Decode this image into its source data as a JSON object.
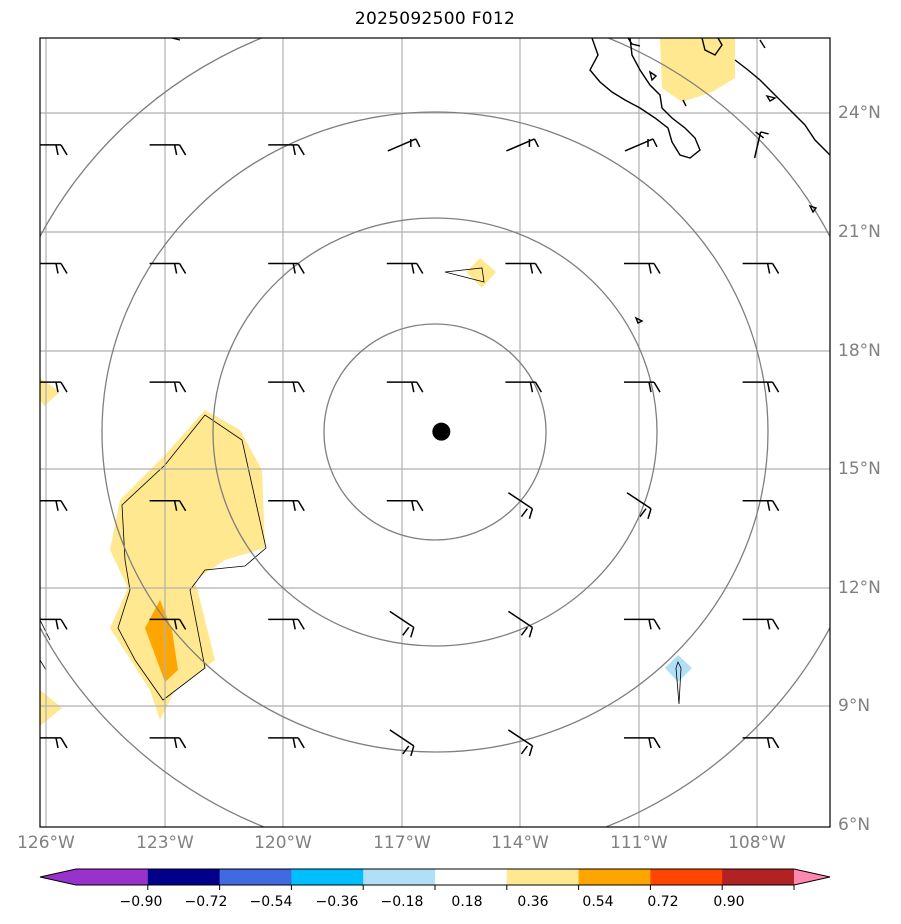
{
  "title": "2025092500 F012",
  "lat_labels": [
    "24°N",
    "21°N",
    "18°N",
    "15°N",
    "12°N",
    "9°N",
    "6°N"
  ],
  "lon_labels": [
    "126°W",
    "123°W",
    "120°W",
    "117°W",
    "114°W",
    "111°W",
    "108°W"
  ],
  "colorbar": {
    "labels": [
      "−0.90",
      "−0.72",
      "−0.54",
      "−0.36",
      "−0.18",
      "0.18",
      "0.36",
      "0.54",
      "0.72",
      "0.90"
    ],
    "colors": [
      "#9932cc",
      "#00008b",
      "#4169e1",
      "#00bfff",
      "#b0e0f8",
      "#ffffff",
      "#ffe88f",
      "#ffa500",
      "#ff4500",
      "#b22222",
      "#ff88b0"
    ]
  },
  "extent": {
    "lon": [
      -126.0,
      -106.0
    ],
    "lat": [
      6.0,
      26.0
    ]
  },
  "center_marker": {
    "lon": -116.0,
    "lat": 16.0,
    "color": "#000000"
  },
  "range_rings_deg": [
    2.75,
    5.5,
    8.25,
    11.0
  ],
  "wind_barbs": [
    {
      "lon": -126,
      "lat": 23,
      "dir": "w"
    },
    {
      "lon": -123,
      "lat": 23,
      "dir": "w"
    },
    {
      "lon": -120,
      "lat": 23,
      "dir": "w"
    },
    {
      "lon": -117,
      "lat": 23,
      "dir": "sw"
    },
    {
      "lon": -114,
      "lat": 23,
      "dir": "sw"
    },
    {
      "lon": -111,
      "lat": 23,
      "dir": "sw"
    },
    {
      "lon": -108,
      "lat": 23,
      "dir": "s"
    },
    {
      "lon": -126,
      "lat": 20,
      "dir": "w"
    },
    {
      "lon": -123,
      "lat": 20,
      "dir": "w"
    },
    {
      "lon": -120,
      "lat": 20,
      "dir": "w"
    },
    {
      "lon": -117,
      "lat": 20,
      "dir": "w"
    },
    {
      "lon": -114,
      "lat": 20,
      "dir": "w"
    },
    {
      "lon": -111,
      "lat": 20,
      "dir": "w"
    },
    {
      "lon": -108,
      "lat": 20,
      "dir": "w"
    },
    {
      "lon": -126,
      "lat": 17,
      "dir": "w"
    },
    {
      "lon": -123,
      "lat": 17,
      "dir": "w"
    },
    {
      "lon": -120,
      "lat": 17,
      "dir": "w"
    },
    {
      "lon": -117,
      "lat": 17,
      "dir": "w"
    },
    {
      "lon": -114,
      "lat": 17,
      "dir": "w"
    },
    {
      "lon": -111,
      "lat": 17,
      "dir": "w"
    },
    {
      "lon": -108,
      "lat": 17,
      "dir": "w"
    },
    {
      "lon": -126,
      "lat": 14,
      "dir": "w"
    },
    {
      "lon": -123,
      "lat": 14,
      "dir": "w"
    },
    {
      "lon": -120,
      "lat": 14,
      "dir": "w"
    },
    {
      "lon": -117,
      "lat": 14,
      "dir": "w"
    },
    {
      "lon": -114,
      "lat": 14,
      "dir": "nw"
    },
    {
      "lon": -111,
      "lat": 14,
      "dir": "nw"
    },
    {
      "lon": -108,
      "lat": 14,
      "dir": "w"
    },
    {
      "lon": -126,
      "lat": 11,
      "dir": "w"
    },
    {
      "lon": -123,
      "lat": 11,
      "dir": "w"
    },
    {
      "lon": -120,
      "lat": 11,
      "dir": "w"
    },
    {
      "lon": -117,
      "lat": 11,
      "dir": "nw"
    },
    {
      "lon": -114,
      "lat": 11,
      "dir": "nw"
    },
    {
      "lon": -111,
      "lat": 11,
      "dir": "w"
    },
    {
      "lon": -108,
      "lat": 11,
      "dir": "w"
    },
    {
      "lon": -126,
      "lat": 8,
      "dir": "w"
    },
    {
      "lon": -123,
      "lat": 8,
      "dir": "w"
    },
    {
      "lon": -120,
      "lat": 8,
      "dir": "w"
    },
    {
      "lon": -117,
      "lat": 8,
      "dir": "nw"
    },
    {
      "lon": -114,
      "lat": 8,
      "dir": "nw"
    },
    {
      "lon": -111,
      "lat": 8,
      "dir": "w"
    },
    {
      "lon": -108,
      "lat": 8,
      "dir": "w"
    }
  ]
}
